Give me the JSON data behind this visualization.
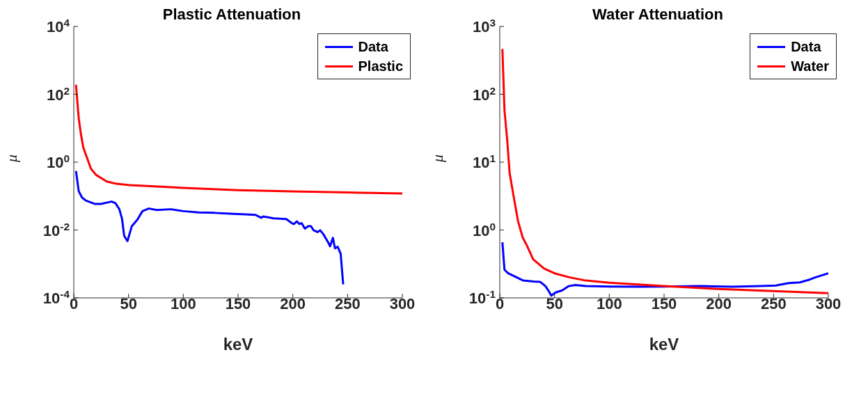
{
  "chart_data": [
    {
      "type": "line",
      "title": "Plastic Attenuation",
      "xlabel": "keV",
      "ylabel": "μ",
      "log": "y",
      "legend": "top right",
      "marker": "none",
      "line_style": "solid",
      "grid": false,
      "xlim": [
        0,
        300
      ],
      "xticks": [
        0,
        50,
        100,
        150,
        200,
        250,
        300
      ],
      "ylim": [
        0.0001,
        10000
      ],
      "yticks": [
        {
          "value": 0.0001,
          "label": "10$^{-4}$"
        },
        {
          "value": 0.01,
          "label": "10$^{-2}$"
        },
        {
          "value": 1,
          "label": "10$^{0}$"
        },
        {
          "value": 100,
          "label": "10$^{2}$"
        },
        {
          "value": 10000,
          "label": "10$^{4}$"
        }
      ],
      "series": [
        {
          "name": "Data",
          "color": "#0000ff",
          "x": [
            2,
            4.5,
            7.5,
            11,
            19,
            25,
            34.5,
            38,
            41.6,
            44,
            46,
            49,
            53,
            58,
            62.7,
            68.6,
            75.7,
            88.6,
            100,
            114,
            128.5,
            145,
            156.7,
            166,
            171,
            173,
            182.6,
            194,
            199,
            201,
            203.7,
            206,
            208,
            211,
            214,
            216.6,
            219,
            222.5,
            225,
            228,
            232,
            234,
            236.6,
            238.5,
            241,
            243.7,
            246
          ],
          "values": [
            0.55,
            0.14,
            0.091,
            0.074,
            0.059,
            0.059,
            0.069,
            0.062,
            0.041,
            0.022,
            0.0068,
            0.0047,
            0.013,
            0.02,
            0.036,
            0.043,
            0.039,
            0.041,
            0.036,
            0.033,
            0.032,
            0.03,
            0.029,
            0.028,
            0.023,
            0.025,
            0.022,
            0.021,
            0.016,
            0.015,
            0.018,
            0.015,
            0.016,
            0.011,
            0.013,
            0.013,
            0.0098,
            0.0087,
            0.0098,
            0.0074,
            0.0045,
            0.0033,
            0.0059,
            0.0029,
            0.0032,
            0.002,
            0.00025
          ]
        },
        {
          "name": "Plastic",
          "color": "#ff0000",
          "x": [
            2,
            4.5,
            6.3,
            8.7,
            15.7,
            20.4,
            30,
            39,
            51,
            100,
            150,
            199,
            250,
            300
          ],
          "values": [
            190,
            20,
            7.4,
            2.7,
            0.64,
            0.42,
            0.27,
            0.23,
            0.21,
            0.175,
            0.15,
            0.137,
            0.128,
            0.12
          ]
        }
      ]
    },
    {
      "type": "line",
      "title": "Water Attenuation",
      "xlabel": "keV",
      "ylabel": "μ",
      "log": "y",
      "legend": "top right",
      "marker": "none",
      "line_style": "solid",
      "grid": false,
      "xlim": [
        0,
        300
      ],
      "xticks": [
        0,
        50,
        100,
        150,
        200,
        250,
        300
      ],
      "ylim": [
        0.1,
        1000
      ],
      "yticks": [
        {
          "value": 0.1,
          "label": "10$^{-1}$"
        },
        {
          "value": 1,
          "label": "10$^{0}$"
        },
        {
          "value": 10,
          "label": "10$^{1}$"
        },
        {
          "value": 100,
          "label": "10$^{2}$"
        },
        {
          "value": 1000,
          "label": "10$^{3}$"
        }
      ],
      "series": [
        {
          "name": "Data",
          "color": "#0000ff",
          "x": [
            2.4,
            4.3,
            7.6,
            13,
            21.4,
            31,
            37,
            41.7,
            44.8,
            47,
            51,
            57,
            63,
            69,
            78.6,
            100,
            126,
            150,
            183,
            212,
            238,
            252,
            264,
            274,
            283,
            288,
            300
          ],
          "values": [
            0.66,
            0.26,
            0.23,
            0.21,
            0.18,
            0.174,
            0.172,
            0.149,
            0.125,
            0.108,
            0.12,
            0.129,
            0.149,
            0.155,
            0.149,
            0.147,
            0.146,
            0.147,
            0.149,
            0.146,
            0.149,
            0.152,
            0.165,
            0.169,
            0.186,
            0.2,
            0.23
          ]
        },
        {
          "name": "Water",
          "color": "#ff0000",
          "x": [
            2.4,
            4.3,
            6.7,
            9,
            12.4,
            16.7,
            21,
            25,
            30.5,
            40.5,
            50,
            64,
            78.6,
            100,
            150,
            200,
            250,
            300
          ],
          "values": [
            465,
            58,
            22,
            6.9,
            3.3,
            1.34,
            0.77,
            0.58,
            0.37,
            0.27,
            0.23,
            0.2,
            0.18,
            0.167,
            0.149,
            0.135,
            0.126,
            0.117
          ]
        }
      ]
    }
  ]
}
